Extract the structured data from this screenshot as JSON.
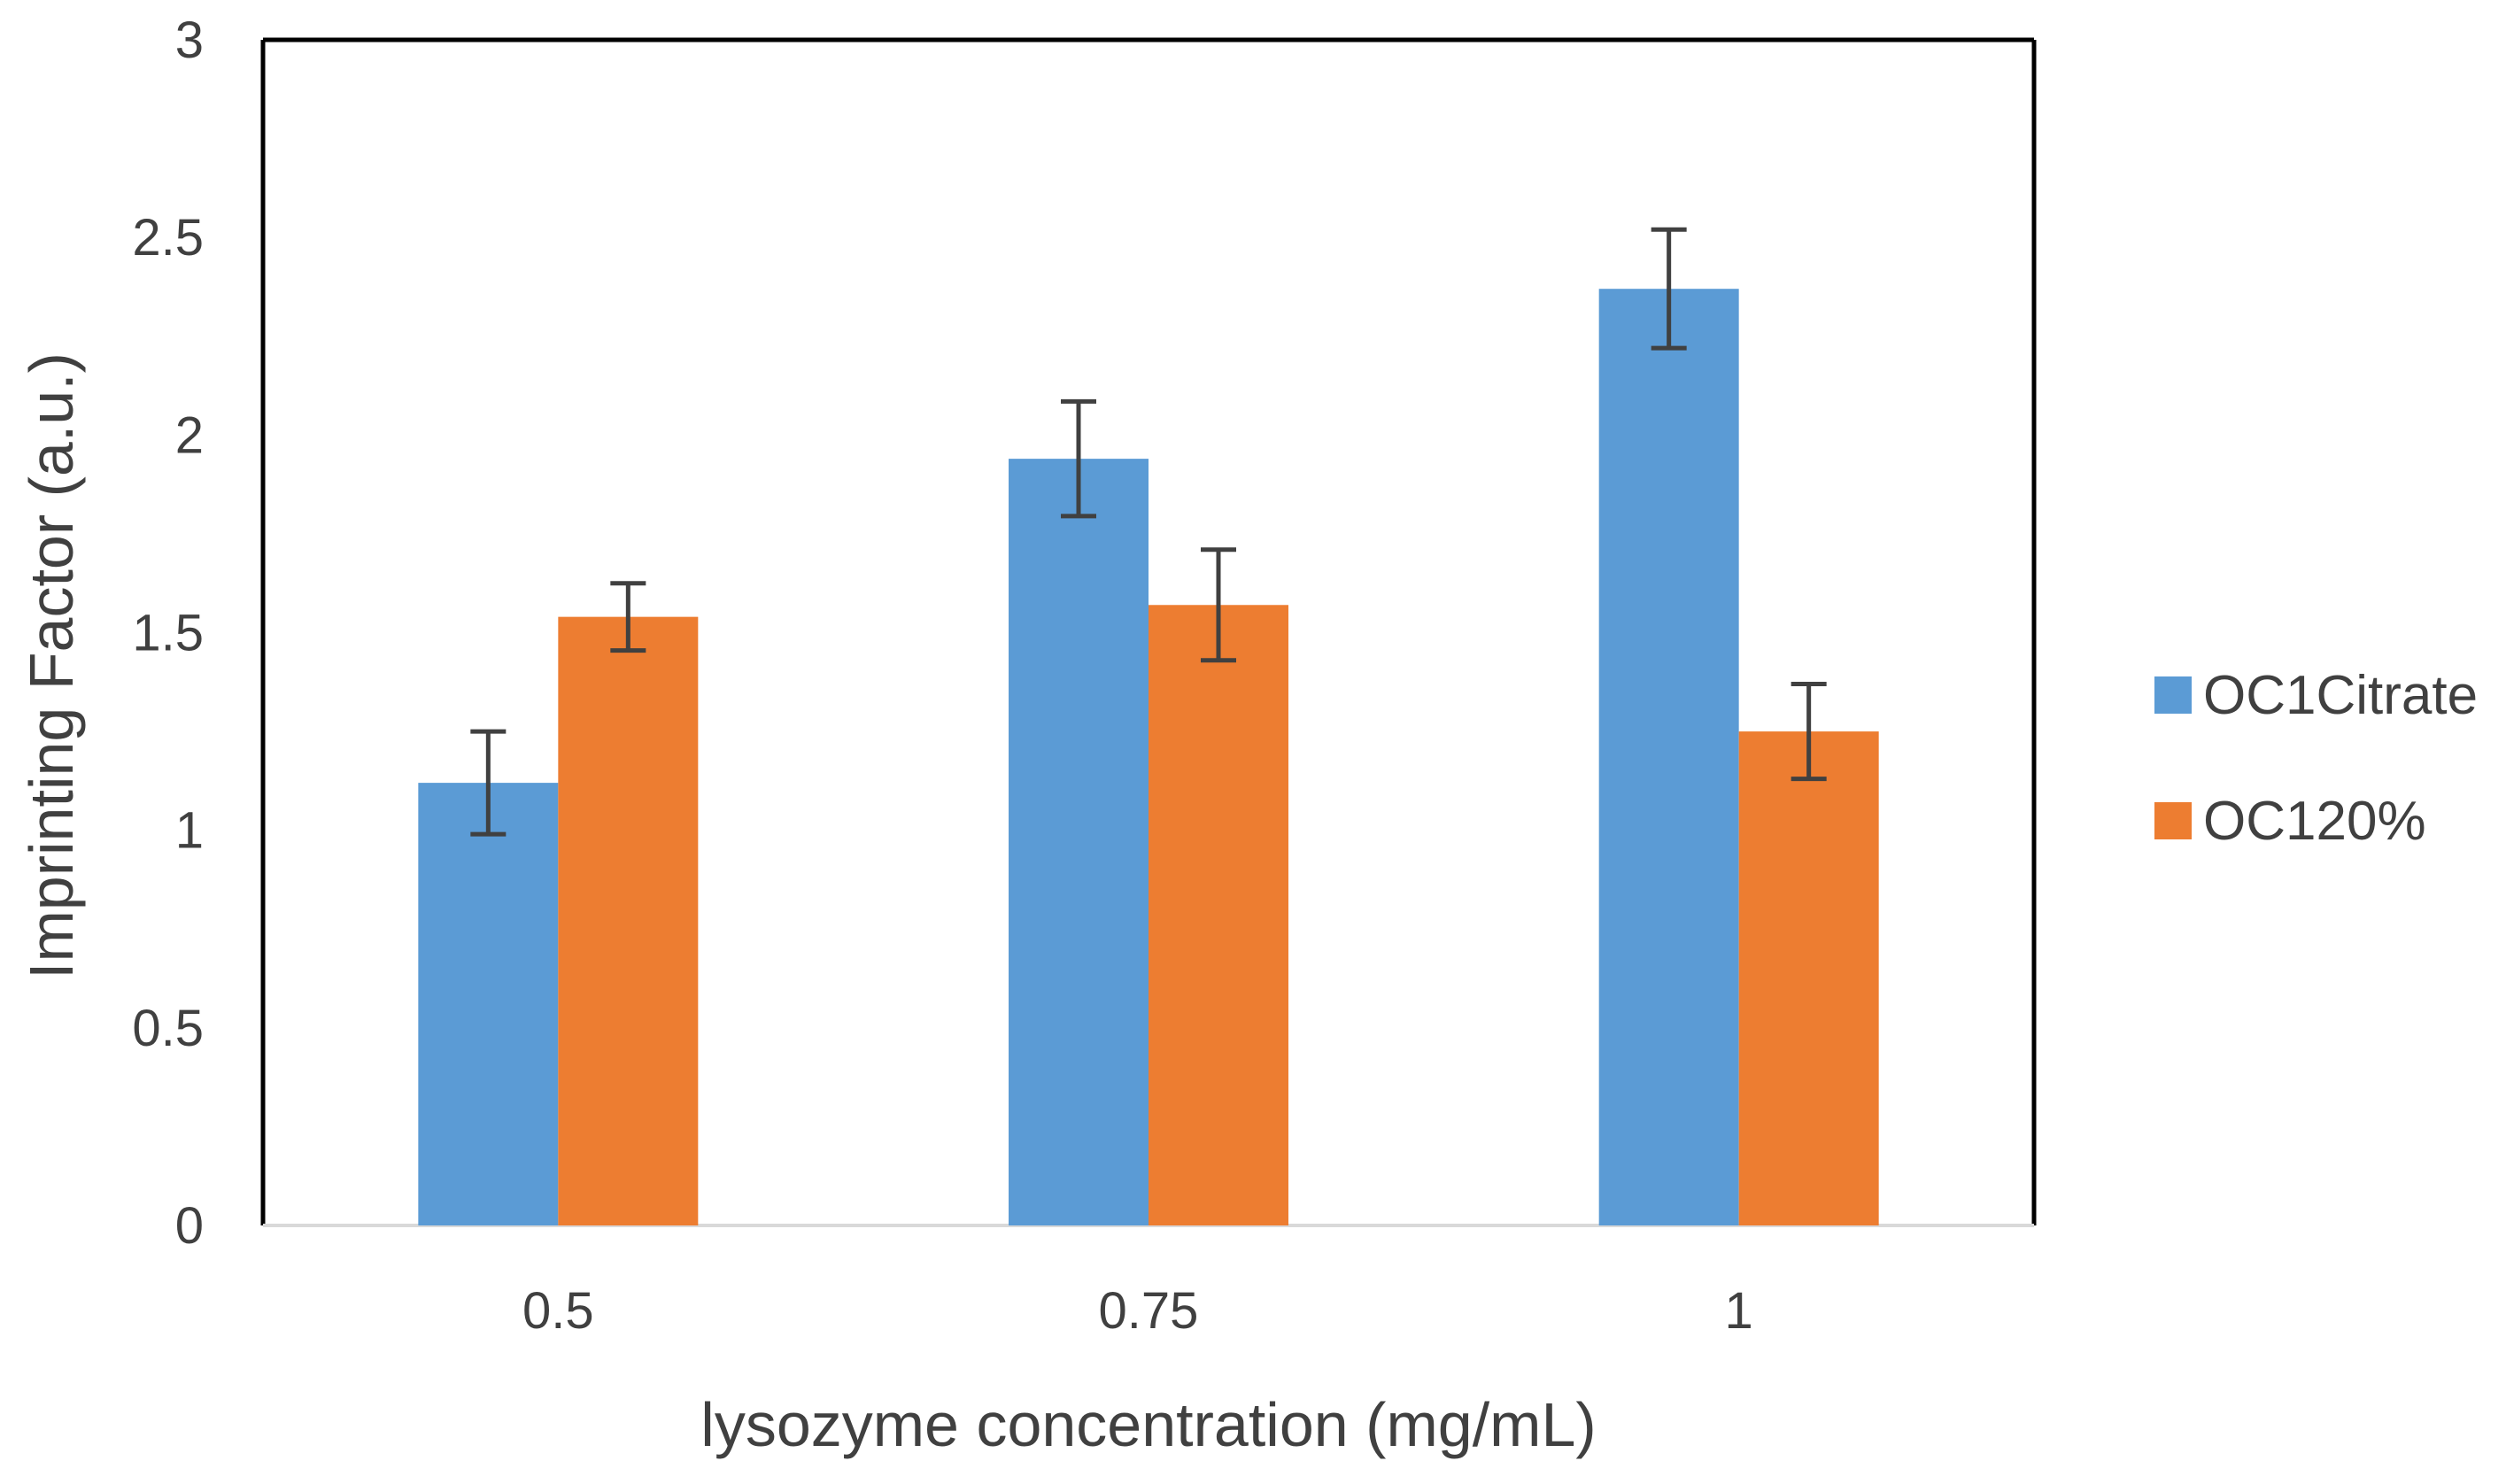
{
  "chart_data": {
    "type": "bar",
    "title": "",
    "xlabel": "lysozyme concentration (mg/mL)",
    "ylabel": "Imprinting Factor (a.u.)",
    "categories": [
      "0.5",
      "0.75",
      "1"
    ],
    "ylim": [
      0,
      3
    ],
    "yticks": [
      {
        "value": 0,
        "label": "0"
      },
      {
        "value": 0.5,
        "label": "0.5"
      },
      {
        "value": 1,
        "label": "1"
      },
      {
        "value": 1.5,
        "label": "1.5"
      },
      {
        "value": 2,
        "label": "2"
      },
      {
        "value": 2.5,
        "label": "2.5"
      },
      {
        "value": 3,
        "label": "3"
      }
    ],
    "grid": false,
    "legend_position": "right",
    "series": [
      {
        "name": "OC1Citrate",
        "color": "#5B9BD5",
        "values": [
          1.12,
          1.94,
          2.37
        ],
        "errors": [
          0.13,
          0.145,
          0.15
        ]
      },
      {
        "name": "OC120%",
        "color": "#ED7D31",
        "values": [
          1.54,
          1.57,
          1.25
        ],
        "errors": [
          0.085,
          0.14,
          0.12
        ]
      }
    ]
  }
}
